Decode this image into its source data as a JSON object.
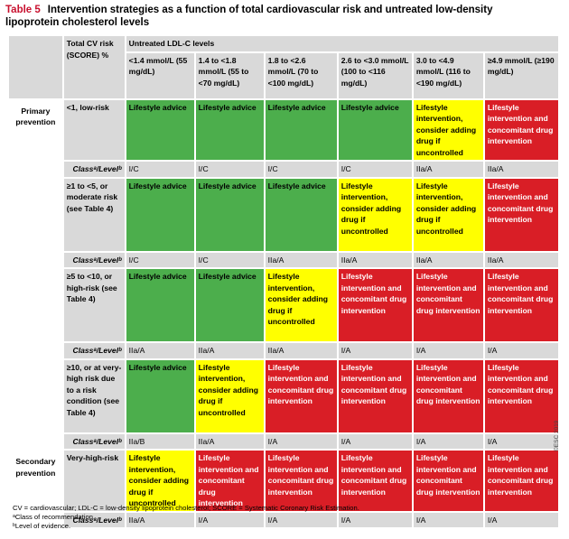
{
  "title": {
    "number": "Table 5",
    "text": "Intervention strategies as a function of total cardiovascular risk and untreated low-density lipoprotein cholesterol levels"
  },
  "header": {
    "risk_col": "Total CV risk (SCORE) %",
    "ldl_group": "Untreated LDL-C levels",
    "ldl_levels": [
      "<1.4 mmol/L (55 mg/dL)",
      "1.4 to <1.8 mmol/L (55 to <70 mg/dL)",
      "1.8 to <2.6 mmol/L (70 to <100 mg/dL)",
      "2.6 to <3.0 mmol/L (100 to <116 mg/dL)",
      "3.0 to <4.9 mmol/L (116 to <190 mg/dL)",
      "≥4.9 mmol/L (≥190 mg/dL)"
    ]
  },
  "sections": {
    "primary": "Primary prevention",
    "secondary": "Secondary prevention"
  },
  "class_label": "Classᵃ/Levelᵇ",
  "rows": [
    {
      "risk": "<1, low-risk",
      "cells": [
        "Lifestyle advice",
        "Lifestyle advice",
        "Lifestyle advice",
        "Lifestyle advice",
        "Lifestyle intervention, consider adding drug if uncontrolled",
        "Lifestyle intervention and concomitant drug intervention"
      ],
      "classes": [
        "I/C",
        "I/C",
        "I/C",
        "I/C",
        "IIa/A",
        "IIa/A"
      ]
    },
    {
      "risk": "≥1 to <5, or moderate risk (see Table 4)",
      "cells": [
        "Lifestyle advice",
        "Lifestyle advice",
        "Lifestyle advice",
        "Lifestyle intervention, consider adding drug if uncontrolled",
        "Lifestyle intervention, consider adding drug if uncontrolled",
        "Lifestyle intervention and concomitant drug intervention"
      ],
      "classes": [
        "I/C",
        "I/C",
        "IIa/A",
        "IIa/A",
        "IIa/A",
        "IIa/A"
      ]
    },
    {
      "risk": "≥5 to <10, or high-risk (see Table 4)",
      "cells": [
        "Lifestyle advice",
        "Lifestyle advice",
        "Lifestyle intervention, consider adding drug if uncontrolled",
        "Lifestyle intervention and concomitant drug intervention",
        "Lifestyle intervention and concomitant drug intervention",
        "Lifestyle intervention and concomitant drug intervention"
      ],
      "classes": [
        "IIa/A",
        "IIa/A",
        "IIa/A",
        "I/A",
        "I/A",
        "I/A"
      ]
    },
    {
      "risk": "≥10, or at very-high risk due to a risk condition (see Table 4)",
      "cells": [
        "Lifestyle advice",
        "Lifestyle intervention, consider adding drug if uncontrolled",
        "Lifestyle intervention and concomitant drug intervention",
        "Lifestyle intervention and concomitant drug intervention",
        "Lifestyle intervention and concomitant drug intervention",
        "Lifestyle intervention and concomitant drug intervention"
      ],
      "classes": [
        "IIa/B",
        "IIa/A",
        "I/A",
        "I/A",
        "I/A",
        "I/A"
      ]
    },
    {
      "risk": "Very-high-risk",
      "cells": [
        "Lifestyle intervention, consider adding drug if uncontrolled",
        "Lifestyle intervention and concomitant drug intervention",
        "Lifestyle intervention and concomitant drug intervention",
        "Lifestyle intervention and concomitant drug intervention",
        "Lifestyle intervention and concomitant drug intervention",
        "Lifestyle intervention and concomitant drug intervention"
      ],
      "classes": [
        "IIa/A",
        "I/A",
        "I/A",
        "I/A",
        "I/A",
        "I/A"
      ]
    }
  ],
  "colors": {
    "lifestyle_advice": "#4cae4c",
    "consider_drug": "#ffff00",
    "concomitant_drug": "#d91e26",
    "title_accent": "#c8102e"
  },
  "footnotes": [
    "CV = cardiovascular; LDL-C = low-density lipoprotein cholesterol; SCORE = Systematic Coronary Risk Estimation.",
    "ᵃClass of recommendation.",
    "ᵇLevel of evidence."
  ],
  "copyright": "©ESC 2019"
}
